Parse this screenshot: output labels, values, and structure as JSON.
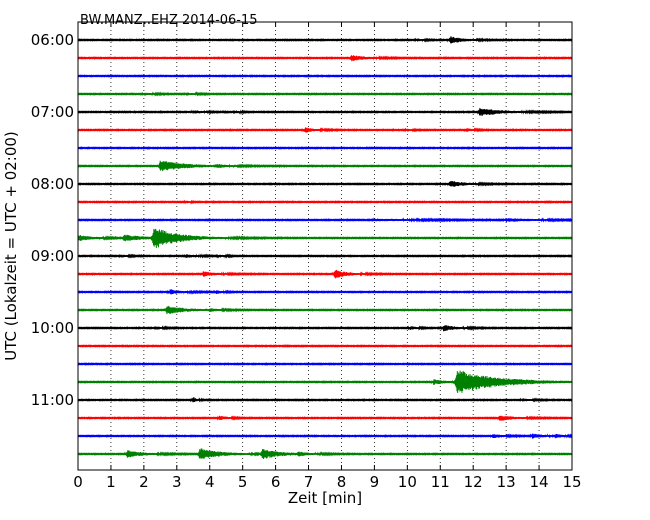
{
  "chart_data": {
    "type": "line",
    "title": "BW.MANZ..EHZ 2014-06-15",
    "xlabel": "Zeit  [min]",
    "ylabel": "UTC (Lokalzeit = UTC + 02:00)",
    "xlim": [
      0,
      15
    ],
    "x_ticks": [
      "0",
      "1",
      "2",
      "3",
      "4",
      "5",
      "6",
      "7",
      "8",
      "9",
      "10",
      "11",
      "12",
      "13",
      "14",
      "15"
    ],
    "y_ticks": [
      "06:00",
      "07:00",
      "08:00",
      "09:00",
      "10:00",
      "11:00"
    ],
    "grid": "vertical dotted",
    "line_interval_min": 15,
    "color_cycle": [
      "#000000",
      "#ff0000",
      "#0000ff",
      "#008000"
    ],
    "traces": [
      {
        "start": "06:00",
        "color": "#000000",
        "events": [
          {
            "t": 10.3,
            "amp": 0.15,
            "dur": 0.4
          },
          {
            "t": 11.3,
            "amp": 0.45,
            "dur": 0.8
          }
        ]
      },
      {
        "start": "06:15",
        "color": "#ff0000",
        "events": [
          {
            "t": 8.3,
            "amp": 0.35,
            "dur": 0.9
          }
        ]
      },
      {
        "start": "06:30",
        "color": "#0000ff",
        "events": []
      },
      {
        "start": "06:45",
        "color": "#008000",
        "events": [
          {
            "t": 2.0,
            "amp": 0.15,
            "dur": 0.6
          },
          {
            "t": 3.3,
            "amp": 0.15,
            "dur": 0.5
          }
        ]
      },
      {
        "start": "07:00",
        "color": "#000000",
        "events": [
          {
            "t": 3.5,
            "amp": 0.2,
            "dur": 0.6
          },
          {
            "t": 4.8,
            "amp": 0.15,
            "dur": 0.3
          },
          {
            "t": 12.2,
            "amp": 0.5,
            "dur": 1.4
          }
        ]
      },
      {
        "start": "07:15",
        "color": "#ff0000",
        "events": [
          {
            "t": 6.9,
            "amp": 0.3,
            "dur": 0.6
          },
          {
            "t": 10.0,
            "amp": 0.15,
            "dur": 0.3
          },
          {
            "t": 11.8,
            "amp": 0.2,
            "dur": 0.4
          }
        ]
      },
      {
        "start": "07:30",
        "color": "#0000ff",
        "events": []
      },
      {
        "start": "07:45",
        "color": "#008000",
        "events": [
          {
            "t": 2.5,
            "amp": 0.7,
            "dur": 1.6
          },
          {
            "t": 4.2,
            "amp": 0.2,
            "dur": 0.5
          }
        ]
      },
      {
        "start": "08:00",
        "color": "#000000",
        "events": [
          {
            "t": 11.3,
            "amp": 0.4,
            "dur": 0.9
          }
        ]
      },
      {
        "start": "08:15",
        "color": "#ff0000",
        "events": [
          {
            "t": 3.3,
            "amp": 0.15,
            "dur": 0.2
          }
        ]
      },
      {
        "start": "08:30",
        "color": "#0000ff",
        "events": [
          {
            "t": 9.0,
            "amp": 0.12,
            "dur": 3.0
          },
          {
            "t": 13.0,
            "amp": 0.2,
            "dur": 1.8
          }
        ]
      },
      {
        "start": "08:45",
        "color": "#008000",
        "events": [
          {
            "t": 0.0,
            "amp": 0.35,
            "dur": 0.9
          },
          {
            "t": 1.4,
            "amp": 0.4,
            "dur": 1.2
          },
          {
            "t": 2.3,
            "amp": 1.3,
            "dur": 1.6
          }
        ]
      },
      {
        "start": "09:00",
        "color": "#000000",
        "events": [
          {
            "t": 1.3,
            "amp": 0.15,
            "dur": 0.5
          },
          {
            "t": 3.3,
            "amp": 0.2,
            "dur": 0.6
          },
          {
            "t": 4.3,
            "amp": 0.15,
            "dur": 0.4
          }
        ]
      },
      {
        "start": "09:15",
        "color": "#ff0000",
        "events": [
          {
            "t": 3.8,
            "amp": 0.3,
            "dur": 0.8
          },
          {
            "t": 7.8,
            "amp": 0.55,
            "dur": 0.8
          }
        ]
      },
      {
        "start": "09:30",
        "color": "#0000ff",
        "events": [
          {
            "t": 2.8,
            "amp": 0.3,
            "dur": 0.7
          },
          {
            "t": 4.2,
            "amp": 0.2,
            "dur": 0.4
          }
        ]
      },
      {
        "start": "09:45",
        "color": "#008000",
        "events": [
          {
            "t": 2.7,
            "amp": 0.5,
            "dur": 1.2
          },
          {
            "t": 4.0,
            "amp": 0.15,
            "dur": 0.5
          }
        ]
      },
      {
        "start": "10:00",
        "color": "#000000",
        "events": [
          {
            "t": 2.4,
            "amp": 0.15,
            "dur": 0.4
          },
          {
            "t": 10.1,
            "amp": 0.2,
            "dur": 0.4
          },
          {
            "t": 11.1,
            "amp": 0.35,
            "dur": 0.8
          }
        ]
      },
      {
        "start": "10:15",
        "color": "#ff0000",
        "events": []
      },
      {
        "start": "10:30",
        "color": "#0000ff",
        "events": []
      },
      {
        "start": "10:45",
        "color": "#008000",
        "events": [
          {
            "t": 10.8,
            "amp": 0.3,
            "dur": 0.8
          },
          {
            "t": 11.5,
            "amp": 1.5,
            "dur": 2.6
          }
        ]
      },
      {
        "start": "11:00",
        "color": "#000000",
        "events": [
          {
            "t": 3.5,
            "amp": 0.35,
            "dur": 0.2
          },
          {
            "t": 13.5,
            "amp": 0.15,
            "dur": 0.6
          }
        ]
      },
      {
        "start": "11:15",
        "color": "#ff0000",
        "events": [
          {
            "t": 4.3,
            "amp": 0.25,
            "dur": 0.5
          },
          {
            "t": 12.8,
            "amp": 0.35,
            "dur": 0.9
          }
        ]
      },
      {
        "start": "11:30",
        "color": "#0000ff",
        "events": [
          {
            "t": 12.6,
            "amp": 0.25,
            "dur": 0.6
          },
          {
            "t": 13.8,
            "amp": 0.3,
            "dur": 0.7
          },
          {
            "t": 14.5,
            "amp": 0.2,
            "dur": 0.5
          }
        ]
      },
      {
        "start": "11:45",
        "color": "#008000",
        "events": [
          {
            "t": 1.5,
            "amp": 0.45,
            "dur": 1.0
          },
          {
            "t": 3.7,
            "amp": 0.7,
            "dur": 1.3
          },
          {
            "t": 5.6,
            "amp": 0.6,
            "dur": 1.2
          },
          {
            "t": 6.7,
            "amp": 0.2,
            "dur": 0.6
          }
        ]
      }
    ]
  }
}
